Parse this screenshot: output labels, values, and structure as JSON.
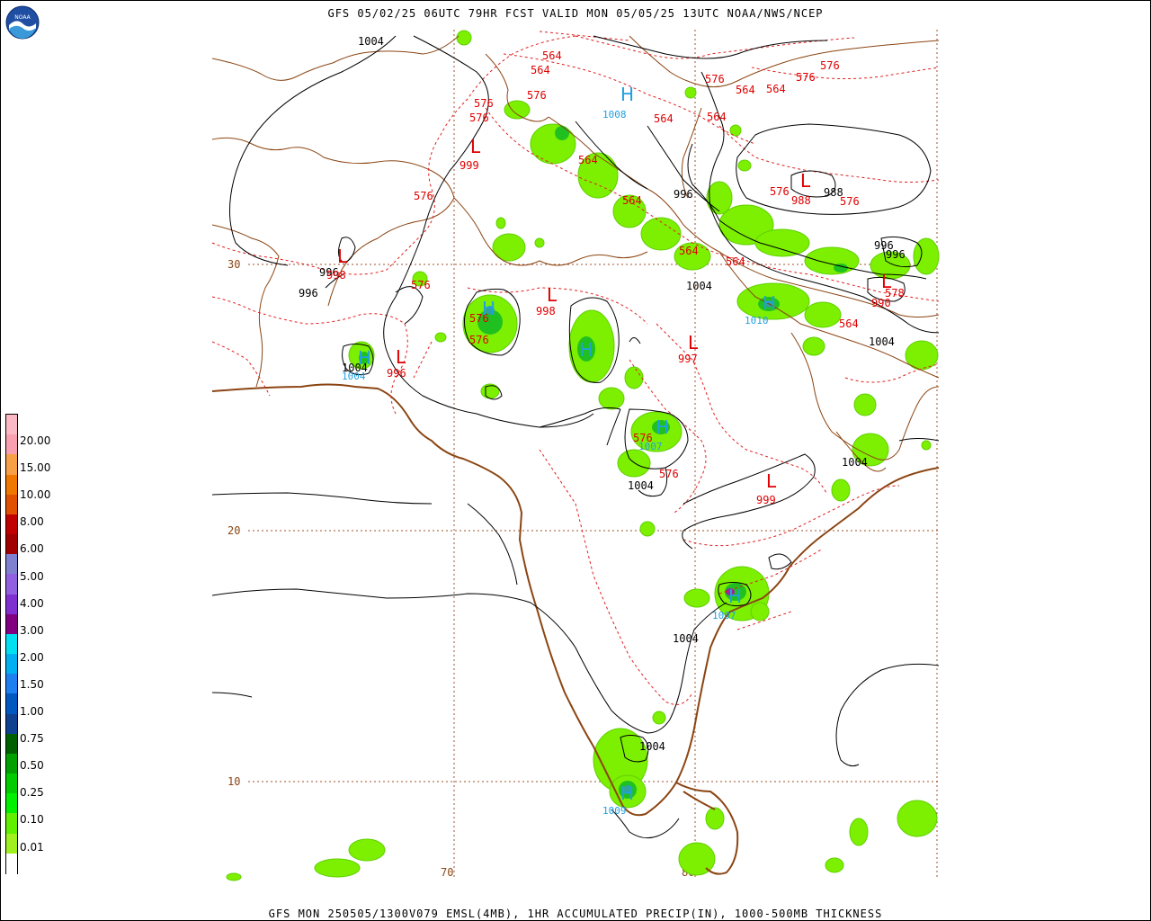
{
  "header": {
    "title": "GFS 05/02/25 06UTC 79HR FCST VALID MON 05/05/25 13UTC NOAA/NWS/NCEP",
    "footer": "GFS MON 250505/1300V079 EMSL(4MB), 1HR ACCUMULATED PRECIP(IN), 1000-500MB THICKNESS"
  },
  "logo": {
    "text": "NOAA"
  },
  "legend": {
    "labels": [
      "20.00",
      "15.00",
      "10.00",
      "8.00",
      "6.00",
      "5.00",
      "4.00",
      "3.00",
      "2.00",
      "1.50",
      "1.00",
      "0.75",
      "0.50",
      "0.25",
      "0.10",
      "0.01"
    ],
    "colors": [
      "#fbb9c5",
      "#f8a0b0",
      "#f8a048",
      "#f07800",
      "#e05000",
      "#c00000",
      "#a00000",
      "#8080d0",
      "#9060e0",
      "#8030d0",
      "#800080",
      "#00e0f0",
      "#00b0f0",
      "#1e80f0",
      "#0058c0",
      "#104090",
      "#006000",
      "#00a000",
      "#00cc00",
      "#00f000",
      "#60f000",
      "#a0f020",
      "#ffffff"
    ]
  },
  "grid": {
    "lat_labels": [
      "30",
      "20",
      "10"
    ],
    "lon_labels": [
      "70",
      "80"
    ]
  },
  "thickness_labels": [
    "564",
    "564",
    "576",
    "564",
    "564",
    "564",
    "564",
    "576",
    "576",
    "576",
    "576",
    "564",
    "564",
    "576",
    "576",
    "576",
    "564",
    "564",
    "576",
    "576",
    "576",
    "576",
    "578",
    "564",
    "576",
    "576"
  ],
  "pressure_labels": [
    "1004",
    "1008",
    "999",
    "996",
    "996",
    "996",
    "988",
    "996",
    "996",
    "1004",
    "1004",
    "1004",
    "1004",
    "1004",
    "1004",
    "1004",
    "1004",
    "1007",
    "998",
    "997",
    "999",
    "1010",
    "1007",
    "1004"
  ],
  "highs": [
    "H",
    "H",
    "H",
    "H",
    "H",
    "H",
    "H",
    "H",
    "H"
  ],
  "lows": [
    "L",
    "L",
    "L",
    "L",
    "L",
    "L",
    "L",
    "L",
    "L"
  ],
  "centers": {
    "high_values": [
      "1008",
      "1007",
      "1010",
      "1004",
      "1008",
      "1007",
      "1007",
      "1009"
    ],
    "low_values": [
      "999",
      "988",
      "998",
      "996",
      "998",
      "997",
      "999",
      "990"
    ]
  }
}
